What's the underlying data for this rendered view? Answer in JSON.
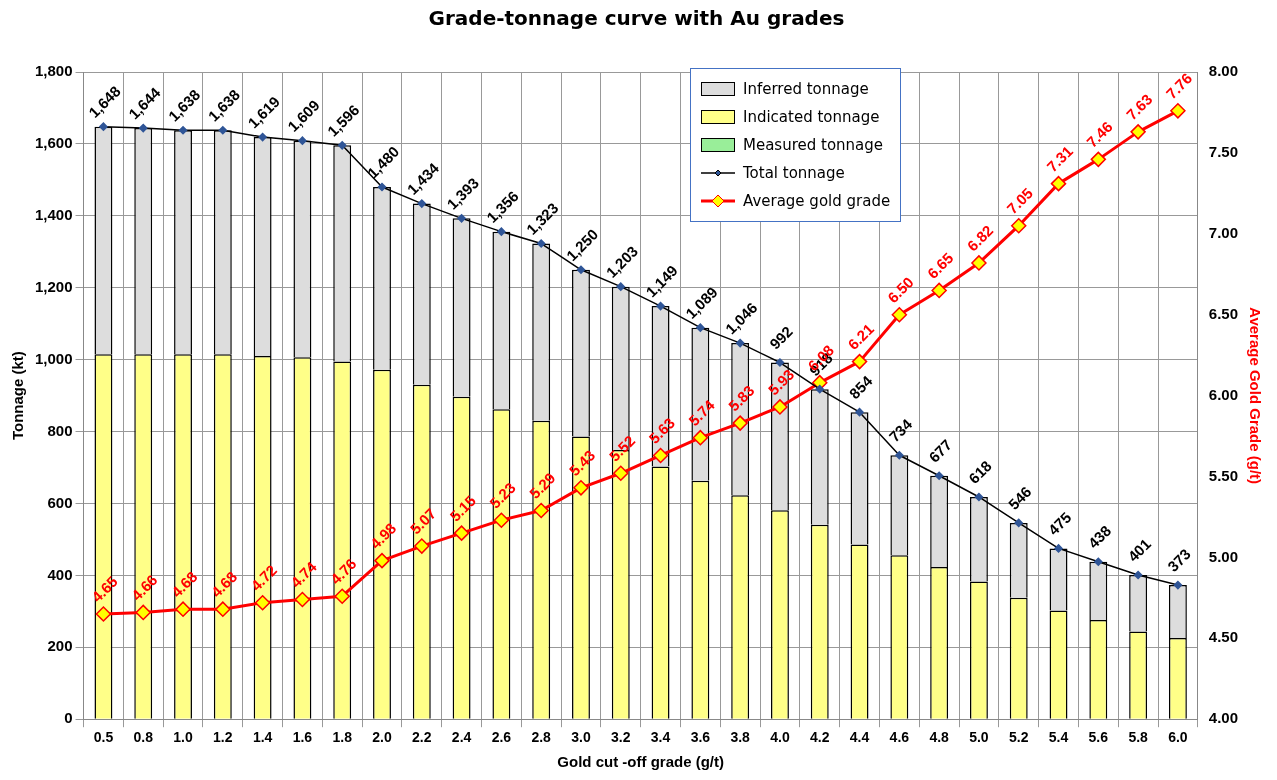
{
  "chart_data": {
    "type": "bar",
    "title": "Grade-tonnage curve with Au grades",
    "xlabel": "Gold cut -off grade (g/t)",
    "ylabel": "Tonnage (kt)",
    "y2label": "Average Gold Grade (g/t)",
    "categories": [
      "0.5",
      "0.8",
      "1.0",
      "1.2",
      "1.4",
      "1.6",
      "1.8",
      "2.0",
      "2.2",
      "2.4",
      "2.6",
      "2.8",
      "3.0",
      "3.2",
      "3.4",
      "3.6",
      "3.8",
      "4.0",
      "4.2",
      "4.4",
      "4.6",
      "4.8",
      "5.0",
      "5.2",
      "5.4",
      "5.6",
      "5.8",
      "6.0"
    ],
    "stacked": true,
    "grid": true,
    "legend": "top right",
    "ylim": [
      0,
      1800
    ],
    "yticks": [
      {
        "value": 0,
        "label": "0"
      },
      {
        "value": 200,
        "label": "200"
      },
      {
        "value": 400,
        "label": "400"
      },
      {
        "value": 600,
        "label": "600"
      },
      {
        "value": 800,
        "label": "800"
      },
      {
        "value": 1000,
        "label": "1,000"
      },
      {
        "value": 1200,
        "label": "1,200"
      },
      {
        "value": 1400,
        "label": "1,400"
      },
      {
        "value": 1600,
        "label": "1,600"
      },
      {
        "value": 1800,
        "label": "1,800"
      }
    ],
    "y2lim": [
      4,
      8
    ],
    "y2ticks": [
      {
        "value": 4,
        "label": "4.00"
      },
      {
        "value": 4.5,
        "label": "4.50"
      },
      {
        "value": 5,
        "label": "5.00"
      },
      {
        "value": 5.5,
        "label": "5.50"
      },
      {
        "value": 6,
        "label": "6.00"
      },
      {
        "value": 6.5,
        "label": "6.50"
      },
      {
        "value": 7,
        "label": "7.00"
      },
      {
        "value": 7.5,
        "label": "7.50"
      },
      {
        "value": 8,
        "label": "8.00"
      }
    ],
    "series": [
      {
        "name": "Measured tonnage",
        "color": "#99ee99",
        "values": [
          0,
          0,
          0,
          0,
          0,
          0,
          0,
          0,
          0,
          0,
          0,
          0,
          0,
          0,
          0,
          0,
          0,
          0,
          0,
          0,
          0,
          0,
          0,
          0,
          0,
          0,
          0,
          0
        ]
      },
      {
        "name": "Indicated tonnage",
        "color": "#ffff88",
        "values": [
          1015,
          1015,
          1015,
          1015,
          1010,
          1007,
          995,
          972,
          930,
          897,
          862,
          830,
          786,
          749,
          703,
          663,
          623,
          581,
          541,
          486,
          456,
          423,
          383,
          338,
          302,
          276,
          244,
          226
        ]
      },
      {
        "name": "Inferred tonnage",
        "color": "#dddddd",
        "values": [
          633,
          629,
          623,
          623,
          609,
          602,
          601,
          508,
          504,
          496,
          494,
          493,
          464,
          454,
          446,
          426,
          423,
          411,
          377,
          368,
          278,
          254,
          235,
          208,
          173,
          162,
          157,
          147
        ]
      },
      {
        "name": "Total tonnage",
        "type": "line",
        "color": "#000000",
        "marker": "diamond",
        "values": [
          1648,
          1644,
          1638,
          1638,
          1619,
          1609,
          1596,
          1480,
          1434,
          1393,
          1356,
          1323,
          1250,
          1203,
          1149,
          1089,
          1046,
          992,
          918,
          854,
          734,
          677,
          618,
          546,
          475,
          438,
          401,
          373
        ],
        "value_labels": [
          "1,648",
          "1,644",
          "1,638",
          "1,638",
          "1,619",
          "1,609",
          "1,596",
          "1,480",
          "1,434",
          "1,393",
          "1,356",
          "1,323",
          "1,250",
          "1,203",
          "1,149",
          "1,089",
          "1,046",
          "992",
          "918",
          "854",
          "734",
          "677",
          "618",
          "546",
          "475",
          "438",
          "401",
          "373"
        ]
      },
      {
        "name": "Average gold grade",
        "type": "line",
        "axis": "y2",
        "color": "#ff0000",
        "marker": "diamond",
        "values": [
          4.65,
          4.66,
          4.68,
          4.68,
          4.72,
          4.74,
          4.76,
          4.98,
          5.07,
          5.15,
          5.23,
          5.29,
          5.43,
          5.52,
          5.63,
          5.74,
          5.83,
          5.93,
          6.08,
          6.21,
          6.5,
          6.65,
          6.82,
          7.05,
          7.31,
          7.46,
          7.63,
          7.76
        ],
        "value_labels": [
          "4.65",
          "4.66",
          "4.68",
          "4.68",
          "4.72",
          "4.74",
          "4.76",
          "4.98",
          "5.07",
          "5.15",
          "5.23",
          "5.29",
          "5.43",
          "5.52",
          "5.63",
          "5.74",
          "5.83",
          "5.93",
          "6.08",
          "6.21",
          "6.50",
          "6.65",
          "6.82",
          "7.05",
          "7.31",
          "7.46",
          "7.63",
          "7.76"
        ]
      }
    ]
  }
}
